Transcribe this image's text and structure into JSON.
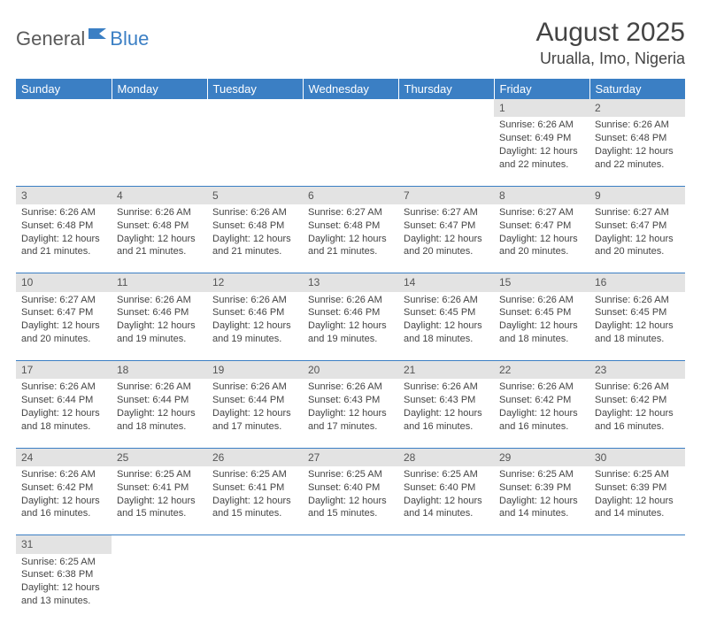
{
  "logo": {
    "part1": "General",
    "part2": "Blue"
  },
  "title": "August 2025",
  "location": "Urualla, Imo, Nigeria",
  "colors": {
    "header_bg": "#3b7fc4",
    "header_text": "#ffffff",
    "daynum_bg": "#e3e3e3",
    "row_divider": "#3b7fc4",
    "text": "#444444"
  },
  "weekdays": [
    "Sunday",
    "Monday",
    "Tuesday",
    "Wednesday",
    "Thursday",
    "Friday",
    "Saturday"
  ],
  "weeks": [
    [
      null,
      null,
      null,
      null,
      null,
      {
        "n": "1",
        "sr": "6:26 AM",
        "ss": "6:49 PM",
        "dl": "12 hours and 22 minutes."
      },
      {
        "n": "2",
        "sr": "6:26 AM",
        "ss": "6:48 PM",
        "dl": "12 hours and 22 minutes."
      }
    ],
    [
      {
        "n": "3",
        "sr": "6:26 AM",
        "ss": "6:48 PM",
        "dl": "12 hours and 21 minutes."
      },
      {
        "n": "4",
        "sr": "6:26 AM",
        "ss": "6:48 PM",
        "dl": "12 hours and 21 minutes."
      },
      {
        "n": "5",
        "sr": "6:26 AM",
        "ss": "6:48 PM",
        "dl": "12 hours and 21 minutes."
      },
      {
        "n": "6",
        "sr": "6:27 AM",
        "ss": "6:48 PM",
        "dl": "12 hours and 21 minutes."
      },
      {
        "n": "7",
        "sr": "6:27 AM",
        "ss": "6:47 PM",
        "dl": "12 hours and 20 minutes."
      },
      {
        "n": "8",
        "sr": "6:27 AM",
        "ss": "6:47 PM",
        "dl": "12 hours and 20 minutes."
      },
      {
        "n": "9",
        "sr": "6:27 AM",
        "ss": "6:47 PM",
        "dl": "12 hours and 20 minutes."
      }
    ],
    [
      {
        "n": "10",
        "sr": "6:27 AM",
        "ss": "6:47 PM",
        "dl": "12 hours and 20 minutes."
      },
      {
        "n": "11",
        "sr": "6:26 AM",
        "ss": "6:46 PM",
        "dl": "12 hours and 19 minutes."
      },
      {
        "n": "12",
        "sr": "6:26 AM",
        "ss": "6:46 PM",
        "dl": "12 hours and 19 minutes."
      },
      {
        "n": "13",
        "sr": "6:26 AM",
        "ss": "6:46 PM",
        "dl": "12 hours and 19 minutes."
      },
      {
        "n": "14",
        "sr": "6:26 AM",
        "ss": "6:45 PM",
        "dl": "12 hours and 18 minutes."
      },
      {
        "n": "15",
        "sr": "6:26 AM",
        "ss": "6:45 PM",
        "dl": "12 hours and 18 minutes."
      },
      {
        "n": "16",
        "sr": "6:26 AM",
        "ss": "6:45 PM",
        "dl": "12 hours and 18 minutes."
      }
    ],
    [
      {
        "n": "17",
        "sr": "6:26 AM",
        "ss": "6:44 PM",
        "dl": "12 hours and 18 minutes."
      },
      {
        "n": "18",
        "sr": "6:26 AM",
        "ss": "6:44 PM",
        "dl": "12 hours and 18 minutes."
      },
      {
        "n": "19",
        "sr": "6:26 AM",
        "ss": "6:44 PM",
        "dl": "12 hours and 17 minutes."
      },
      {
        "n": "20",
        "sr": "6:26 AM",
        "ss": "6:43 PM",
        "dl": "12 hours and 17 minutes."
      },
      {
        "n": "21",
        "sr": "6:26 AM",
        "ss": "6:43 PM",
        "dl": "12 hours and 16 minutes."
      },
      {
        "n": "22",
        "sr": "6:26 AM",
        "ss": "6:42 PM",
        "dl": "12 hours and 16 minutes."
      },
      {
        "n": "23",
        "sr": "6:26 AM",
        "ss": "6:42 PM",
        "dl": "12 hours and 16 minutes."
      }
    ],
    [
      {
        "n": "24",
        "sr": "6:26 AM",
        "ss": "6:42 PM",
        "dl": "12 hours and 16 minutes."
      },
      {
        "n": "25",
        "sr": "6:25 AM",
        "ss": "6:41 PM",
        "dl": "12 hours and 15 minutes."
      },
      {
        "n": "26",
        "sr": "6:25 AM",
        "ss": "6:41 PM",
        "dl": "12 hours and 15 minutes."
      },
      {
        "n": "27",
        "sr": "6:25 AM",
        "ss": "6:40 PM",
        "dl": "12 hours and 15 minutes."
      },
      {
        "n": "28",
        "sr": "6:25 AM",
        "ss": "6:40 PM",
        "dl": "12 hours and 14 minutes."
      },
      {
        "n": "29",
        "sr": "6:25 AM",
        "ss": "6:39 PM",
        "dl": "12 hours and 14 minutes."
      },
      {
        "n": "30",
        "sr": "6:25 AM",
        "ss": "6:39 PM",
        "dl": "12 hours and 14 minutes."
      }
    ],
    [
      {
        "n": "31",
        "sr": "6:25 AM",
        "ss": "6:38 PM",
        "dl": "12 hours and 13 minutes."
      },
      null,
      null,
      null,
      null,
      null,
      null
    ]
  ],
  "labels": {
    "sunrise": "Sunrise:",
    "sunset": "Sunset:",
    "daylight": "Daylight:"
  }
}
